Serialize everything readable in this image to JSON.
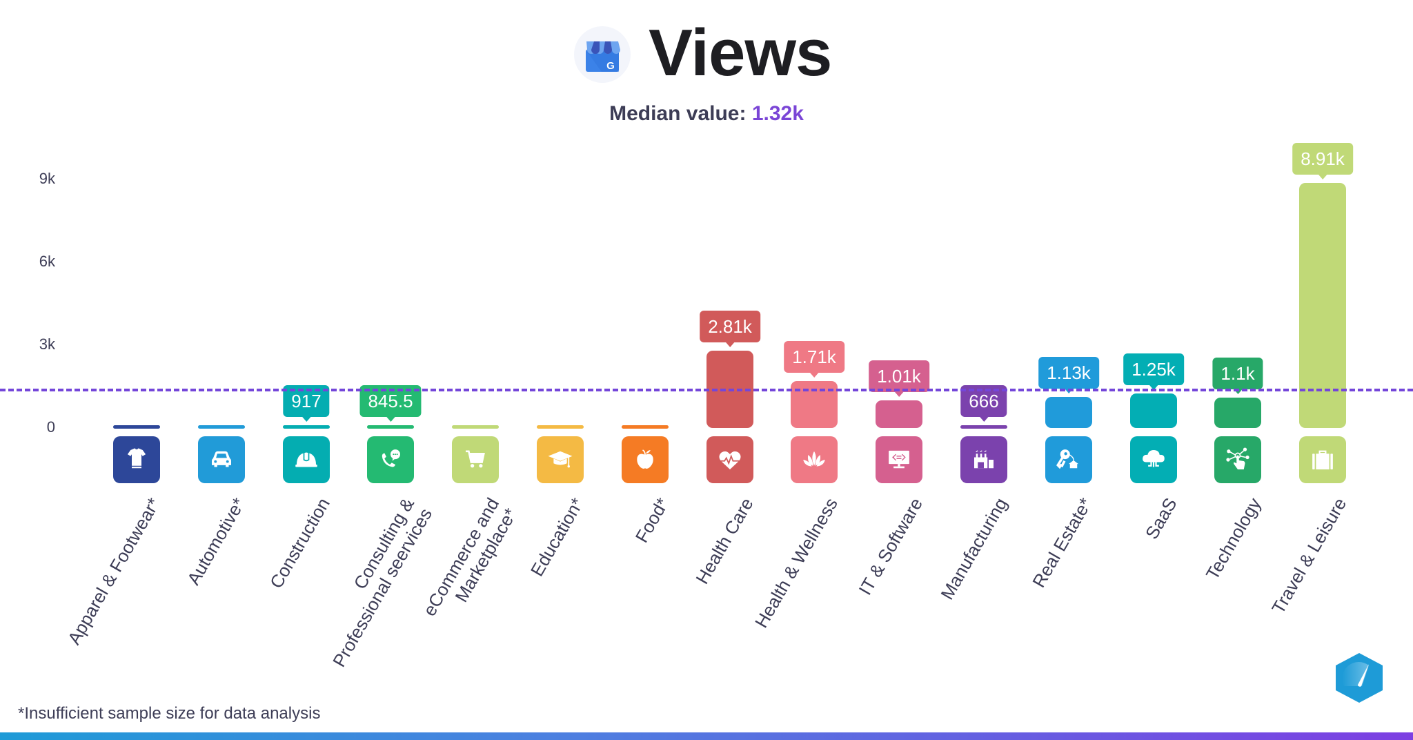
{
  "header": {
    "title": "Views",
    "subtitle_label": "Median value:",
    "subtitle_value": "1.32k"
  },
  "footnote": "*Insufficient sample size for data analysis",
  "y_ticks": [
    "9k",
    "6k",
    "3k",
    "0"
  ],
  "colors": {
    "median_line": "#7446d9",
    "median_text": "#7a45d6",
    "title": "#1e1e22",
    "text": "#3d3d56"
  },
  "chart_data": {
    "type": "bar",
    "title": "Views",
    "subtitle": "Median value: 1.32k",
    "xlabel": "",
    "ylabel": "",
    "ylim": [
      0,
      9500
    ],
    "yticks": [
      0,
      3000,
      6000,
      9000
    ],
    "ytick_labels": [
      "0",
      "3k",
      "6k",
      "9k"
    ],
    "grid": false,
    "legend": null,
    "median": 1320,
    "categories": [
      "Apparel & Footwear*",
      "Automotive*",
      "Construction",
      "Consulting & Professional seervices",
      "eCommerce and Marketplace*",
      "Education*",
      "Food*",
      "Health Care",
      "Health & Wellness",
      "IT & Software",
      "Manufacturing",
      "Real Estate*",
      "SaaS",
      "Technology",
      "Travel & Leisure"
    ],
    "values": [
      null,
      null,
      917,
      845.5,
      null,
      null,
      null,
      2810,
      1710,
      1010,
      666,
      1130,
      1250,
      1100,
      8910
    ],
    "value_labels": [
      "",
      "",
      "917",
      "845.5",
      "",
      "",
      "",
      "2.81k",
      "1.71k",
      "1.01k",
      "666",
      "1.13k",
      "1.25k",
      "1.1k",
      "8.91k"
    ],
    "annotations": [
      "*Insufficient sample size for data analysis"
    ]
  },
  "bars": [
    {
      "label": "Apparel & Footwear*",
      "value_label": "",
      "value": 0,
      "color": "#2d4799",
      "icon": "tshirt-icon"
    },
    {
      "label": "Automotive*",
      "value_label": "",
      "value": 0,
      "color": "#219bd8",
      "icon": "car-icon"
    },
    {
      "label": "Construction",
      "value_label": "917",
      "value": 917,
      "color": "#04adb1",
      "icon": "hardhat-icon"
    },
    {
      "label": "Consulting &\nProfessional seervices",
      "value_label": "845.5",
      "value": 845.5,
      "color": "#24ba72",
      "icon": "phone-chat-icon"
    },
    {
      "label": "eCommerce and\nMarketplace*",
      "value_label": "",
      "value": 0,
      "color": "#c0d977",
      "icon": "cart-icon"
    },
    {
      "label": "Education*",
      "value_label": "",
      "value": 0,
      "color": "#f4ba44",
      "icon": "graduation-cap-icon"
    },
    {
      "label": "Food*",
      "value_label": "",
      "value": 0,
      "color": "#f57b24",
      "icon": "apple-icon"
    },
    {
      "label": "Health Care",
      "value_label": "2.81k",
      "value": 2810,
      "color": "#d15a5a",
      "icon": "heartbeat-icon"
    },
    {
      "label": "Health & Wellness",
      "value_label": "1.71k",
      "value": 1710,
      "color": "#ef7985",
      "icon": "lotus-icon"
    },
    {
      "label": "IT & Software",
      "value_label": "1.01k",
      "value": 1010,
      "color": "#d5608f",
      "icon": "monitor-code-icon"
    },
    {
      "label": "Manufacturing",
      "value_label": "666",
      "value": 666,
      "color": "#7b42ad",
      "icon": "factory-icon"
    },
    {
      "label": "Real Estate*",
      "value_label": "1.13k",
      "value": 1130,
      "color": "#209bda",
      "icon": "key-house-icon"
    },
    {
      "label": "SaaS",
      "value_label": "1.25k",
      "value": 1250,
      "color": "#03aeb4",
      "icon": "cloud-icon"
    },
    {
      "label": "Technology",
      "value_label": "1.1k",
      "value": 1100,
      "color": "#27a868",
      "icon": "touch-network-icon"
    },
    {
      "label": "Travel & Leisure",
      "value_label": "8.91k",
      "value": 8910,
      "color": "#c0d977",
      "icon": "suitcase-icon"
    }
  ]
}
